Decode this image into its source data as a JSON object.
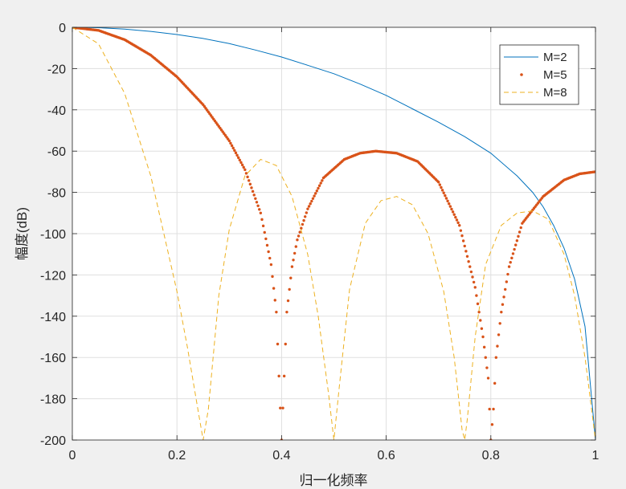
{
  "chart_data": {
    "type": "line",
    "title": "",
    "xlabel": "归一化频率",
    "ylabel": "幅度(dB)",
    "xlim": [
      0,
      1
    ],
    "ylim": [
      -200,
      0
    ],
    "x_ticks": [
      "0",
      "0.2",
      "0.4",
      "0.6",
      "0.8",
      "1"
    ],
    "y_ticks": [
      "0",
      "-20",
      "-40",
      "-60",
      "-80",
      "-100",
      "-120",
      "-140",
      "-160",
      "-180",
      "-200"
    ],
    "grid": true,
    "legend_position": "top-right",
    "series": [
      {
        "name": "M=2",
        "style": "solid",
        "color": "#0072BD",
        "x": [
          0,
          0.05,
          0.1,
          0.15,
          0.2,
          0.25,
          0.3,
          0.35,
          0.4,
          0.45,
          0.5,
          0.55,
          0.6,
          0.65,
          0.7,
          0.75,
          0.8,
          0.85,
          0.88,
          0.9,
          0.92,
          0.94,
          0.96,
          0.98,
          1.0
        ],
        "values": [
          0,
          -0.2,
          -0.9,
          -2.0,
          -3.5,
          -5.4,
          -7.9,
          -11.0,
          -14.4,
          -18.4,
          -22.5,
          -27.5,
          -33.0,
          -39.5,
          -46.0,
          -53.0,
          -61.0,
          -72.0,
          -80.0,
          -87.0,
          -96.0,
          -107.0,
          -122.0,
          -145.0,
          -200.0
        ]
      },
      {
        "name": "M=5",
        "style": "dotted",
        "color": "#D95319",
        "x": [
          0,
          0.05,
          0.1,
          0.15,
          0.2,
          0.25,
          0.3,
          0.33,
          0.36,
          0.38,
          0.39,
          0.4,
          0.41,
          0.42,
          0.43,
          0.45,
          0.48,
          0.52,
          0.55,
          0.58,
          0.62,
          0.66,
          0.7,
          0.74,
          0.77,
          0.785,
          0.795,
          0.8,
          0.805,
          0.81,
          0.82,
          0.835,
          0.86,
          0.9,
          0.94,
          0.97,
          1.0
        ],
        "values": [
          0,
          -1.5,
          -6.0,
          -13.5,
          -24.0,
          -37.5,
          -55.0,
          -69.0,
          -90.0,
          -115.0,
          -138.0,
          -200.0,
          -138.0,
          -116.0,
          -103.0,
          -88.0,
          -73.0,
          -64.0,
          -61.0,
          -60.0,
          -61.0,
          -65.0,
          -75.0,
          -96.0,
          -126.0,
          -150.0,
          -170.0,
          -200.0,
          -185.0,
          -160.0,
          -138.0,
          -116.0,
          -95.0,
          -82.0,
          -74.0,
          -71.0,
          -70.0
        ]
      },
      {
        "name": "M=8",
        "style": "dashed",
        "color": "#EDB120",
        "x": [
          0,
          0.05,
          0.1,
          0.15,
          0.2,
          0.22,
          0.24,
          0.25,
          0.26,
          0.28,
          0.3,
          0.33,
          0.36,
          0.39,
          0.42,
          0.45,
          0.47,
          0.49,
          0.5,
          0.51,
          0.53,
          0.56,
          0.59,
          0.62,
          0.65,
          0.68,
          0.71,
          0.73,
          0.745,
          0.75,
          0.755,
          0.77,
          0.79,
          0.82,
          0.85,
          0.88,
          0.91,
          0.94,
          0.96,
          0.98,
          1.0
        ],
        "values": [
          0,
          -8.0,
          -32.0,
          -72.0,
          -128.0,
          -155.0,
          -185.0,
          -200.0,
          -185.0,
          -130.0,
          -98.0,
          -72.0,
          -64.0,
          -67.0,
          -82.0,
          -110.0,
          -140.0,
          -178.0,
          -200.0,
          -175.0,
          -127.0,
          -95.0,
          -84.0,
          -82.0,
          -86.0,
          -100.0,
          -128.0,
          -160.0,
          -195.0,
          -200.0,
          -190.0,
          -150.0,
          -115.0,
          -96.0,
          -90.0,
          -89.0,
          -93.0,
          -110.0,
          -130.0,
          -160.0,
          -200.0
        ]
      }
    ]
  }
}
